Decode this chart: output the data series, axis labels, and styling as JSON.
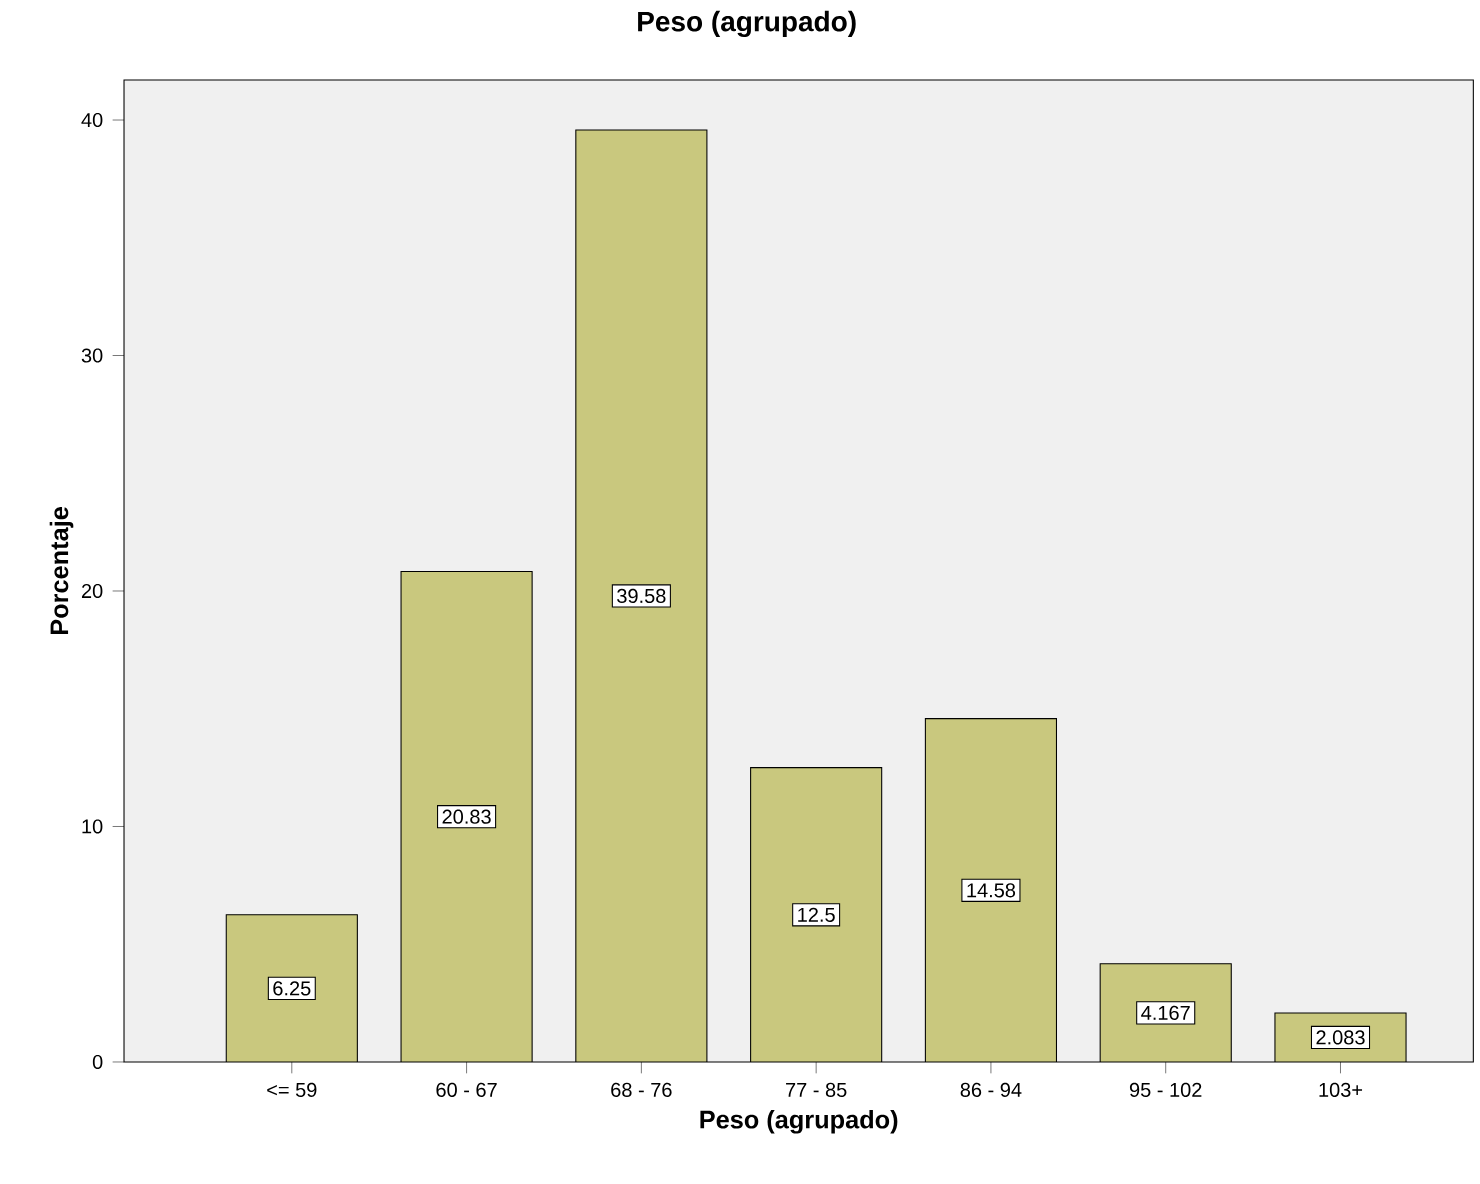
{
  "chart_data": {
    "type": "bar",
    "title": "Peso (agrupado)",
    "xlabel": "Peso (agrupado)",
    "ylabel": "Porcentaje",
    "categories": [
      "<= 59",
      "60 - 67",
      "68 - 76",
      "77 - 85",
      "86 - 94",
      "95 - 102",
      "103+"
    ],
    "values": [
      6.25,
      20.83,
      39.58,
      12.5,
      14.58,
      4.167,
      2.083
    ],
    "value_labels": [
      "6.25",
      "20.83",
      "39.58",
      "12.5",
      "14.58",
      "4.167",
      "2.083"
    ],
    "color": "#c9c87e",
    "ylim": [
      0,
      41.7
    ],
    "yticks": [
      0,
      10,
      20,
      30,
      40
    ]
  }
}
